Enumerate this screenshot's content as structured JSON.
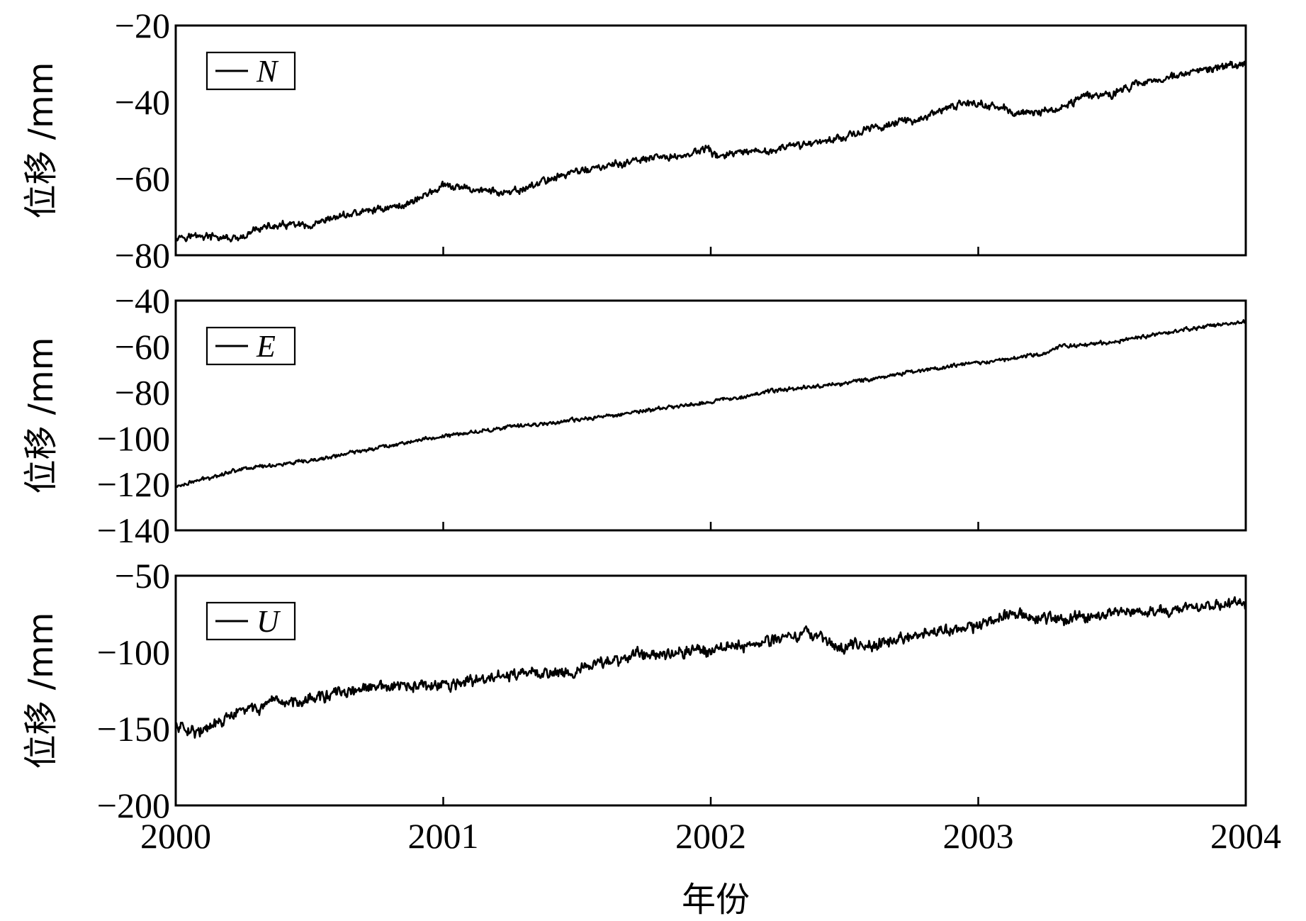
{
  "chart_data": [
    {
      "type": "line",
      "ylabel": "位移 /mm",
      "xlabel": "",
      "xlim": [
        2000,
        2004
      ],
      "ylim": [
        -80,
        -20
      ],
      "yticks": [
        -20,
        -40,
        -60,
        -80
      ],
      "xticks": [
        2000,
        2001,
        2002,
        2003,
        2004
      ],
      "legend_placement": "top-left",
      "series": [
        {
          "name": "N",
          "color": "#000000",
          "x": [
            2000.0,
            2000.1,
            2000.25,
            2000.3,
            2000.45,
            2000.5,
            2000.6,
            2000.75,
            2000.85,
            2001.0,
            2001.15,
            2001.25,
            2001.4,
            2001.5,
            2001.6,
            2001.75,
            2001.9,
            2001.99,
            2002.01,
            2002.2,
            2002.35,
            2002.5,
            2002.65,
            2002.8,
            2002.95,
            2003.05,
            2003.15,
            2003.3,
            2003.4,
            2003.5,
            2003.6,
            2003.75,
            2003.9,
            2004.0
          ],
          "y": [
            -75,
            -75,
            -76,
            -73,
            -72,
            -73,
            -70,
            -68,
            -67,
            -62,
            -63,
            -64,
            -60,
            -58,
            -57,
            -55,
            -54,
            -52,
            -54,
            -53,
            -51,
            -49,
            -46,
            -44,
            -40,
            -41,
            -43,
            -42,
            -38,
            -38,
            -35,
            -33,
            -31,
            -30
          ]
        }
      ],
      "noise": 1.4
    },
    {
      "type": "line",
      "ylabel": "位移 /mm",
      "xlabel": "",
      "xlim": [
        2000,
        2004
      ],
      "ylim": [
        -140,
        -40
      ],
      "yticks": [
        -40,
        -60,
        -80,
        -100,
        -120,
        -140
      ],
      "xticks": [
        2000,
        2001,
        2002,
        2003,
        2004
      ],
      "legend_placement": "top-left",
      "series": [
        {
          "name": "E",
          "color": "#000000",
          "x": [
            2000.0,
            2000.25,
            2000.5,
            2000.75,
            2001.0,
            2001.25,
            2001.5,
            2001.75,
            2002.0,
            2002.25,
            2002.5,
            2002.75,
            2003.0,
            2003.25,
            2003.3,
            2003.5,
            2003.75,
            2004.0
          ],
          "y": [
            -121,
            -113,
            -110,
            -104,
            -99,
            -95,
            -92,
            -88,
            -84,
            -79,
            -76,
            -71,
            -67,
            -63,
            -60,
            -58,
            -53,
            -49
          ]
        }
      ],
      "noise": 1.2
    },
    {
      "type": "line",
      "ylabel": "位移 /mm",
      "xlabel": "年份",
      "xlim": [
        2000,
        2004
      ],
      "ylim": [
        -200,
        -50
      ],
      "yticks": [
        -50,
        -100,
        -150,
        -200
      ],
      "xticks": [
        2000,
        2001,
        2002,
        2003,
        2004
      ],
      "legend_placement": "top-left",
      "series": [
        {
          "name": "U",
          "color": "#000000",
          "x": [
            2000.0,
            2000.1,
            2000.25,
            2000.5,
            2000.75,
            2001.0,
            2001.25,
            2001.5,
            2001.7,
            2002.0,
            2002.2,
            2002.35,
            2002.42,
            2002.45,
            2002.6,
            2002.8,
            2003.0,
            2003.1,
            2003.3,
            2003.5,
            2003.75,
            2004.0
          ],
          "y": [
            -148,
            -152,
            -138,
            -130,
            -123,
            -122,
            -115,
            -112,
            -102,
            -98,
            -93,
            -88,
            -88,
            -97,
            -95,
            -88,
            -83,
            -75,
            -78,
            -74,
            -72,
            -68
          ]
        }
      ],
      "noise": 5.5
    }
  ]
}
